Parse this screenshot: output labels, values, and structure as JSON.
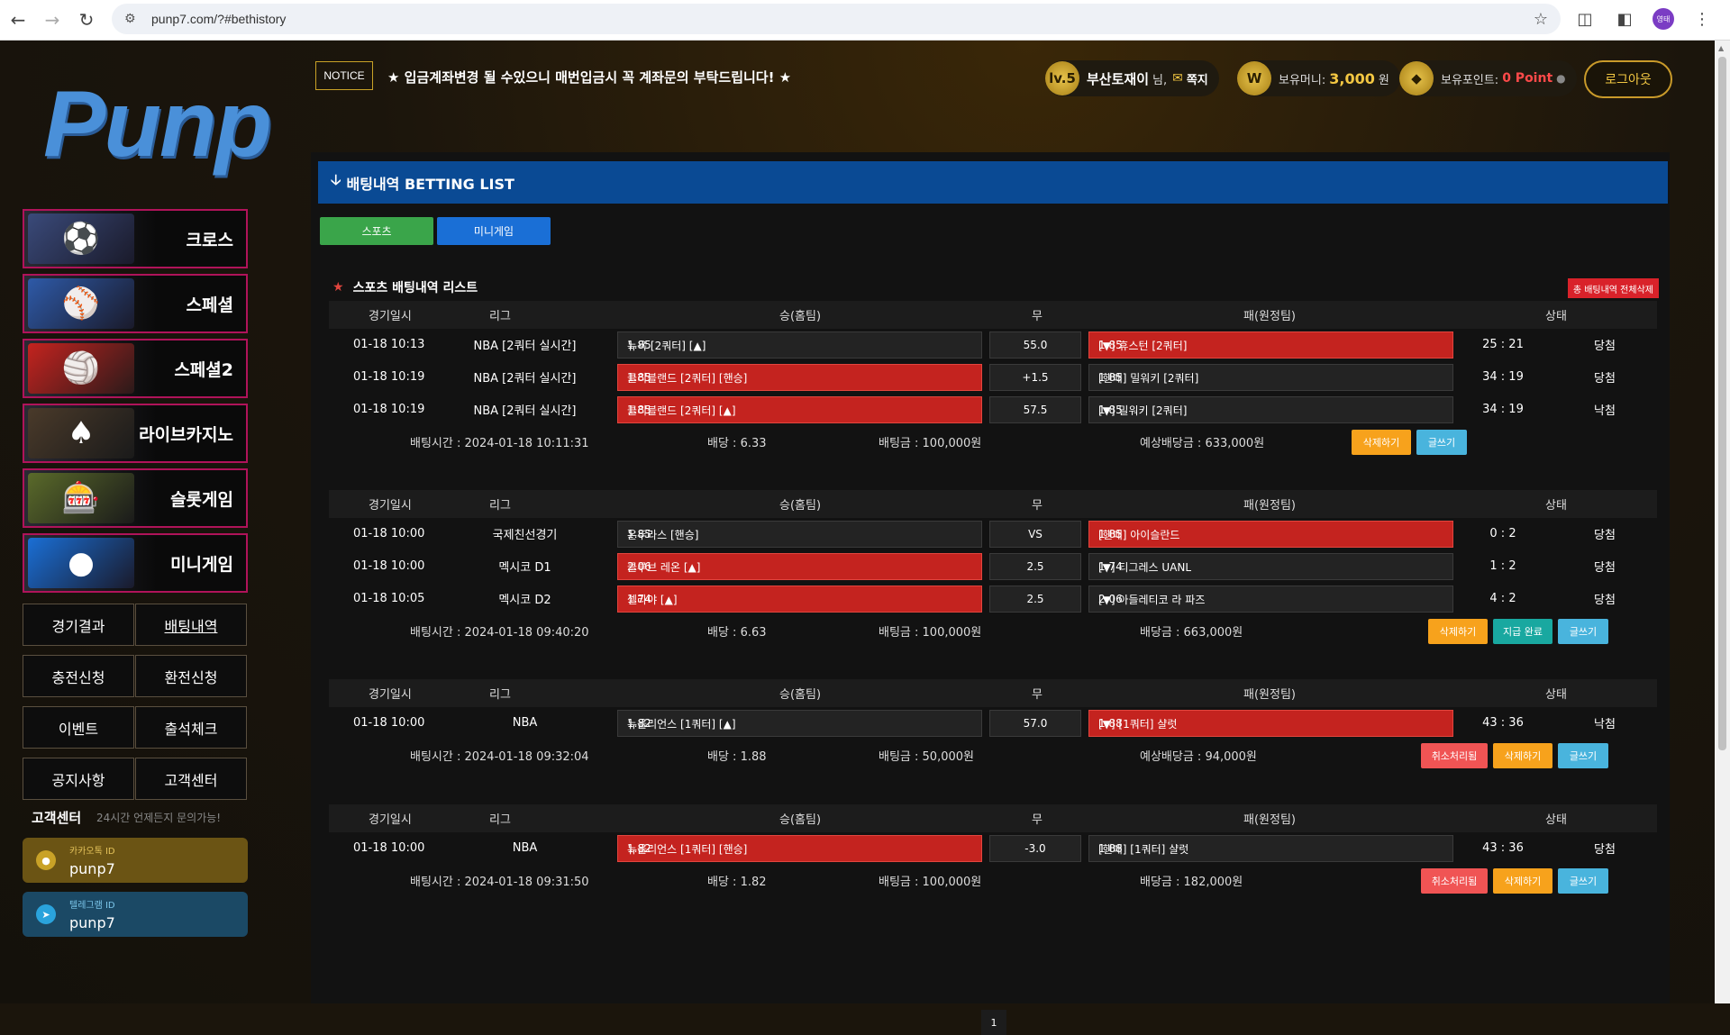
{
  "browser": {
    "url": "punp7.com/?#bethistory",
    "profile_label": "영태"
  },
  "sidebar": {
    "logo": "Punp",
    "menu": [
      {
        "label": "크로스",
        "icon": "players-icon"
      },
      {
        "label": "스페셜",
        "icon": "baseball-icon"
      },
      {
        "label": "스페셜2",
        "icon": "volleyball-icon"
      },
      {
        "label": "라이브카지노",
        "icon": "cards-icon"
      },
      {
        "label": "슬롯게임",
        "icon": "slot-icon"
      },
      {
        "label": "미니게임",
        "icon": "minigame-icon"
      }
    ],
    "grid": [
      {
        "label": "경기결과"
      },
      {
        "label": "배팅내역"
      },
      {
        "label": "충전신청"
      },
      {
        "label": "환전신청"
      },
      {
        "label": "이벤트"
      },
      {
        "label": "출석체크"
      },
      {
        "label": "공지사항"
      },
      {
        "label": "고객센터"
      }
    ],
    "cs_title": "고객센터",
    "cs_sub": "24시간 언제든지 문의가능!",
    "kakao": {
      "label": "카카오톡 ID",
      "value": "punp7"
    },
    "telegram": {
      "label": "텔레그램 ID",
      "value": "punp7"
    }
  },
  "header": {
    "notice_label": "NOTICE",
    "notice_text": "★ 입금계좌변경 될 수있으니 매번입금시 꼭 계좌문의 부탁드립니다! ★",
    "level": "lv.5",
    "user_name": "부산토재이",
    "user_suffix": "님,",
    "message_label": "쪽지",
    "money_label": "보유머니:",
    "money_value": "3,000",
    "money_unit": "원",
    "point_label": "보유포인트:",
    "point_value": "0 Point",
    "logout": "로그아웃",
    "coin_w": "W"
  },
  "main": {
    "title": "배팅내역 BETTING LIST",
    "tabs": [
      "스포츠",
      "미니게임"
    ],
    "list_title": "스포츠 배팅내역 리스트",
    "delete_all": "총 배팅내역 전체삭제",
    "columns": {
      "date": "경기일시",
      "league": "리그",
      "home": "승(홈팀)",
      "draw": "무",
      "away": "패(원정팀)",
      "status": "상태"
    },
    "bets": [
      {
        "rows": [
          {
            "date": "01-18 10:13",
            "league": "NBA [2쿼터 실시간]",
            "home": "뉴욕 [2쿼터] [▲]",
            "home_odds": "1.85",
            "home_win": false,
            "draw": "55.0",
            "away_odds": "1.85",
            "away": "[▼] 휴스턴 [2쿼터]",
            "away_win": true,
            "score": "25 : 21",
            "result": "당첨"
          },
          {
            "date": "01-18 10:19",
            "league": "NBA [2쿼터 실시간]",
            "home": "클리블랜드 [2쿼터] [핸승]",
            "home_odds": "1.85",
            "home_win": true,
            "draw": "+1.5",
            "away_odds": "1.85",
            "away": "[핸패] 밀워키 [2쿼터]",
            "away_win": false,
            "score": "34 : 19",
            "result": "당첨"
          },
          {
            "date": "01-18 10:19",
            "league": "NBA [2쿼터 실시간]",
            "home": "클리블랜드 [2쿼터] [▲]",
            "home_odds": "1.85",
            "home_win": true,
            "draw": "57.5",
            "away_odds": "1.85",
            "away": "[▼] 밀워키 [2쿼터]",
            "away_win": false,
            "score": "34 : 19",
            "result": "낙첨"
          }
        ],
        "bet_time": "배팅시간 : 2024-01-18 10:11:31",
        "odds": "배당 : 6.33",
        "amount": "배팅금 : 100,000원",
        "payout": "예상배당금 : 633,000원",
        "buttons": [
          "삭제하기",
          "글쓰기"
        ]
      },
      {
        "rows": [
          {
            "date": "01-18 10:00",
            "league": "국제친선경기",
            "home": "온두라스 [핸승]",
            "home_odds": "1.85",
            "home_win": false,
            "draw": "VS",
            "away_odds": "1.85",
            "away": "[핸패] 아이슬란드",
            "away_win": true,
            "score": "0 : 2",
            "result": "당첨"
          },
          {
            "date": "01-18 10:00",
            "league": "멕시코 D1",
            "home": "클루브 레온 [▲]",
            "home_odds": "2.06",
            "home_win": true,
            "draw": "2.5",
            "away_odds": "1.74",
            "away": "[▼] 티그레스 UANL",
            "away_win": false,
            "score": "1 : 2",
            "result": "당첨"
          },
          {
            "date": "01-18 10:05",
            "league": "멕시코 D2",
            "home": "셀라야 [▲]",
            "home_odds": "1.74",
            "home_win": true,
            "draw": "2.5",
            "away_odds": "2.06",
            "away": "[▼] 아들레티코 라 파즈",
            "away_win": false,
            "score": "4 : 2",
            "result": "당첨"
          }
        ],
        "bet_time": "배팅시간 : 2024-01-18 09:40:20",
        "odds": "배당 : 6.63",
        "amount": "배팅금 : 100,000원",
        "payout": "배당금 : 663,000원",
        "buttons": [
          "삭제하기",
          "지급 완료",
          "글쓰기"
        ]
      },
      {
        "rows": [
          {
            "date": "01-18 10:00",
            "league": "NBA",
            "home": "뉴올리언스 [1쿼터] [▲]",
            "home_odds": "1.82",
            "home_win": false,
            "draw": "57.0",
            "away_odds": "1.88",
            "away": "[▼] [1쿼터] 샬럿",
            "away_win": true,
            "score": "43 : 36",
            "result": "낙첨"
          }
        ],
        "bet_time": "배팅시간 : 2024-01-18 09:32:04",
        "odds": "배당 : 1.88",
        "amount": "배팅금 : 50,000원",
        "payout": "예상배당금 : 94,000원",
        "buttons": [
          "취소처리됨",
          "삭제하기",
          "글쓰기"
        ]
      },
      {
        "rows": [
          {
            "date": "01-18 10:00",
            "league": "NBA",
            "home": "뉴올리언스 [1쿼터] [핸승]",
            "home_odds": "1.82",
            "home_win": true,
            "draw": "-3.0",
            "away_odds": "1.88",
            "away": "[핸패] [1쿼터] 샬럿",
            "away_win": false,
            "score": "43 : 36",
            "result": "당첨"
          }
        ],
        "bet_time": "배팅시간 : 2024-01-18 09:31:50",
        "odds": "배당 : 1.82",
        "amount": "배팅금 : 100,000원",
        "payout": "배당금 : 182,000원",
        "buttons": [
          "취소처리됨",
          "삭제하기",
          "글쓰기"
        ]
      }
    ],
    "page": "1"
  },
  "colors": {
    "title_bar": "#0a4a94",
    "win_cell": "#c4231f",
    "accent_gold": "#f3c742",
    "sidebar_border": "#b0135a"
  }
}
